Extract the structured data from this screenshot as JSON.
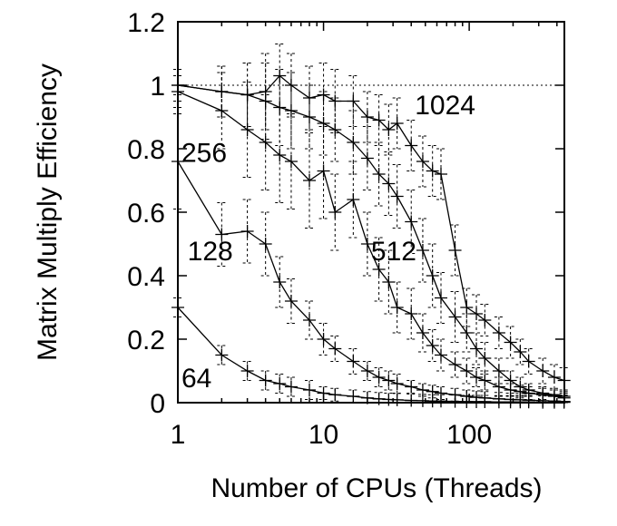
{
  "chart_data": {
    "type": "line",
    "title": "",
    "xlabel": "Number of CPUs (Threads)",
    "ylabel": "Matrix Multiply Efficiency",
    "xscale": "log",
    "xlim": [
      1,
      450
    ],
    "ylim": [
      0,
      1.2
    ],
    "x_ticks": [
      1,
      10,
      100
    ],
    "x_tick_labels": [
      "1",
      "10",
      "100"
    ],
    "y_ticks": [
      0,
      0.2,
      0.4,
      0.6,
      0.8,
      1.0,
      1.2
    ],
    "y_tick_labels": [
      "0",
      "0.2",
      "0.4",
      "0.6",
      "0.8",
      "1",
      "1.2"
    ],
    "reference_line": 1.0,
    "grid": false,
    "marker": "plus",
    "error_bars": "dashed",
    "x": [
      1,
      2,
      3,
      4,
      5,
      6,
      8,
      10,
      12,
      16,
      20,
      24,
      28,
      32,
      40,
      48,
      56,
      64,
      80,
      96,
      112,
      128,
      160,
      192,
      224,
      256,
      320,
      384,
      448
    ],
    "series": [
      {
        "name": "64",
        "values": [
          0.3,
          0.15,
          0.1,
          0.07,
          0.06,
          0.05,
          0.04,
          0.03,
          0.025,
          0.02,
          0.015,
          0.012,
          0.01,
          0.009,
          0.007,
          0.006,
          0.005,
          0.005,
          0.004,
          0.003,
          0.003,
          0.003,
          0.002,
          0.002,
          0.002,
          0.002,
          0.001,
          0.001,
          0.001
        ],
        "err": [
          0.03,
          0.03,
          0.03,
          0.03,
          0.03,
          0.03,
          0.03,
          0.02,
          0.02,
          0.02,
          0.02,
          0.02,
          0.02,
          0.02,
          0.02,
          0.02,
          0.02,
          0.02,
          0.02,
          0.02,
          0.02,
          0.02,
          0.02,
          0.02,
          0.02,
          0.02,
          0.02,
          0.02,
          0.02
        ]
      },
      {
        "name": "128",
        "values": [
          0.76,
          0.53,
          0.54,
          0.5,
          0.38,
          0.32,
          0.26,
          0.2,
          0.17,
          0.13,
          0.1,
          0.08,
          0.07,
          0.06,
          0.05,
          0.04,
          0.035,
          0.03,
          0.025,
          0.02,
          0.017,
          0.015,
          0.012,
          0.01,
          0.009,
          0.008,
          0.006,
          0.005,
          0.004
        ],
        "err": [
          0.15,
          0.1,
          0.1,
          0.1,
          0.08,
          0.07,
          0.06,
          0.05,
          0.04,
          0.04,
          0.03,
          0.03,
          0.03,
          0.03,
          0.02,
          0.02,
          0.02,
          0.02,
          0.02,
          0.02,
          0.02,
          0.02,
          0.02,
          0.02,
          0.02,
          0.02,
          0.02,
          0.02,
          0.02
        ]
      },
      {
        "name": "256",
        "values": [
          0.98,
          0.92,
          0.86,
          0.82,
          0.78,
          0.76,
          0.7,
          0.73,
          0.6,
          0.64,
          0.5,
          0.42,
          0.38,
          0.3,
          0.28,
          0.22,
          0.18,
          0.15,
          0.12,
          0.1,
          0.08,
          0.07,
          0.05,
          0.04,
          0.035,
          0.03,
          0.025,
          0.02,
          0.015
        ],
        "err": [
          0.05,
          0.12,
          0.15,
          0.15,
          0.15,
          0.15,
          0.15,
          0.15,
          0.12,
          0.12,
          0.1,
          0.1,
          0.1,
          0.08,
          0.08,
          0.06,
          0.05,
          0.05,
          0.04,
          0.04,
          0.03,
          0.03,
          0.03,
          0.02,
          0.02,
          0.02,
          0.02,
          0.02,
          0.02
        ]
      },
      {
        "name": "512",
        "values": [
          1.0,
          0.98,
          0.97,
          0.95,
          0.93,
          0.92,
          0.9,
          0.88,
          0.86,
          0.82,
          0.77,
          0.72,
          0.69,
          0.65,
          0.57,
          0.48,
          0.4,
          0.33,
          0.27,
          0.22,
          0.17,
          0.14,
          0.1,
          0.07,
          0.05,
          0.04,
          0.03,
          0.025,
          0.02
        ],
        "err": [
          0.05,
          0.08,
          0.1,
          0.12,
          0.12,
          0.12,
          0.1,
          0.1,
          0.1,
          0.1,
          0.1,
          0.1,
          0.1,
          0.1,
          0.1,
          0.1,
          0.1,
          0.08,
          0.08,
          0.06,
          0.05,
          0.05,
          0.04,
          0.03,
          0.03,
          0.02,
          0.02,
          0.02,
          0.02
        ]
      },
      {
        "name": "1024",
        "values": [
          1.0,
          0.98,
          0.97,
          0.98,
          1.03,
          1.0,
          0.96,
          0.97,
          0.95,
          0.95,
          0.9,
          0.89,
          0.86,
          0.88,
          0.81,
          0.76,
          0.73,
          0.72,
          0.48,
          0.3,
          0.28,
          0.26,
          0.22,
          0.19,
          0.16,
          0.13,
          0.1,
          0.08,
          0.07
        ],
        "err": [
          0.03,
          0.08,
          0.1,
          0.12,
          0.1,
          0.1,
          0.1,
          0.1,
          0.1,
          0.08,
          0.08,
          0.08,
          0.08,
          0.08,
          0.08,
          0.08,
          0.08,
          0.08,
          0.08,
          0.06,
          0.06,
          0.05,
          0.05,
          0.05,
          0.04,
          0.04,
          0.04,
          0.04,
          0.04
        ]
      }
    ],
    "series_label_positions": {
      "64": [
        1.0,
        0.08
      ],
      "128": [
        1.1,
        0.48
      ],
      "256": [
        1.0,
        0.79
      ],
      "512": [
        20.0,
        0.48
      ],
      "1024": [
        40.0,
        0.94
      ]
    }
  }
}
